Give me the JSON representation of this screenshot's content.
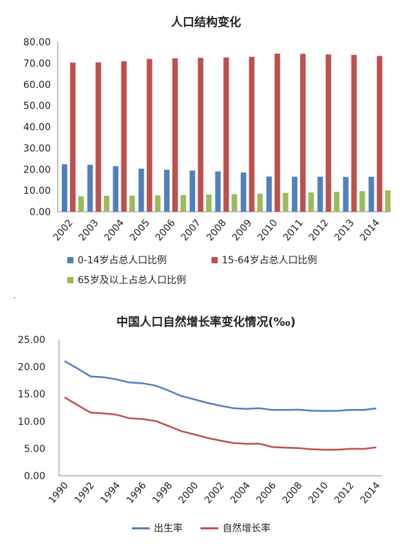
{
  "chart_data": [
    {
      "type": "bar",
      "title": "人口结构变化",
      "categories": [
        "2002",
        "2003",
        "2004",
        "2005",
        "2006",
        "2007",
        "2008",
        "2009",
        "2010",
        "2011",
        "2012",
        "2013",
        "2014"
      ],
      "ylim": [
        0,
        80
      ],
      "yticks": [
        "0.00",
        "10.00",
        "20.00",
        "30.00",
        "40.00",
        "50.00",
        "60.00",
        "70.00",
        "80.00"
      ],
      "legend_position": "bottom",
      "series": [
        {
          "name": "0-14岁占总人口比例",
          "color": "#4f81bd",
          "values": [
            22.4,
            22.1,
            21.5,
            20.3,
            19.8,
            19.4,
            19.0,
            18.5,
            16.6,
            16.5,
            16.5,
            16.4,
            16.5
          ]
        },
        {
          "name": "15-64岁占总人口比例",
          "color": "#c0504d",
          "values": [
            70.3,
            70.4,
            70.9,
            72.0,
            72.3,
            72.5,
            72.7,
            73.0,
            74.5,
            74.4,
            74.1,
            73.9,
            73.4
          ]
        },
        {
          "name": "65岁及以上占总人口比例",
          "color": "#9bbb59",
          "values": [
            7.3,
            7.5,
            7.6,
            7.7,
            7.9,
            8.1,
            8.3,
            8.5,
            8.9,
            9.1,
            9.4,
            9.7,
            10.1
          ]
        }
      ]
    },
    {
      "type": "line",
      "title": "中国人口自然增长率变化情况(‰)",
      "x": [
        1990,
        1991,
        1992,
        1993,
        1994,
        1995,
        1996,
        1997,
        1998,
        1999,
        2000,
        2001,
        2002,
        2003,
        2004,
        2005,
        2006,
        2007,
        2008,
        2009,
        2010,
        2011,
        2012,
        2013,
        2014
      ],
      "xticks": [
        "1990",
        "1992",
        "1994",
        "1996",
        "1998",
        "2000",
        "2002",
        "2004",
        "2006",
        "2008",
        "2010",
        "2012",
        "2014"
      ],
      "ylim": [
        0,
        25
      ],
      "yticks": [
        "0.00",
        "5.00",
        "10.00",
        "15.00",
        "20.00",
        "25.00"
      ],
      "legend_position": "bottom",
      "series": [
        {
          "name": "出生率",
          "color": "#4f81bd",
          "values": [
            21.06,
            19.68,
            18.24,
            18.09,
            17.7,
            17.12,
            16.98,
            16.57,
            15.64,
            14.64,
            14.03,
            13.38,
            12.86,
            12.41,
            12.29,
            12.4,
            12.09,
            12.1,
            12.14,
            11.95,
            11.9,
            11.93,
            12.1,
            12.08,
            12.37
          ]
        },
        {
          "name": "自然增长率",
          "color": "#c0504d",
          "values": [
            14.39,
            12.98,
            11.6,
            11.45,
            11.21,
            10.55,
            10.42,
            10.06,
            9.14,
            8.18,
            7.58,
            6.95,
            6.45,
            6.01,
            5.87,
            5.89,
            5.28,
            5.17,
            5.08,
            4.87,
            4.79,
            4.79,
            4.95,
            4.92,
            5.21
          ]
        }
      ]
    }
  ]
}
